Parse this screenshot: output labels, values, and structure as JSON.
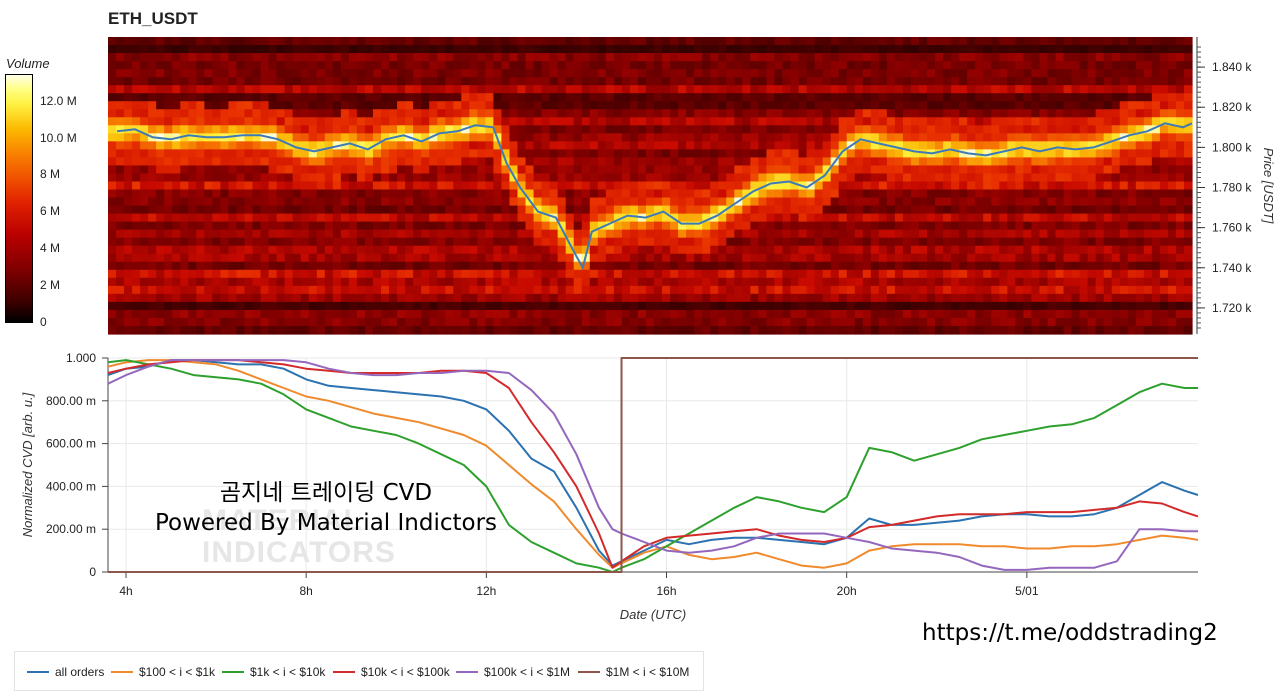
{
  "chart_title": "ETH_USDT",
  "heatmap": {
    "type": "heatmap",
    "colorbar": {
      "title": "Volume",
      "ticks": [
        "12.0 M",
        "10.0 M",
        "8 M",
        "6 M",
        "4 M",
        "2 M",
        "0"
      ],
      "tick_values": [
        12,
        10,
        8,
        6,
        4,
        2,
        0
      ],
      "max": 13.5
    },
    "y_axis": {
      "title": "Price [USDT]",
      "ticks": [
        "1.840 k",
        "1.820 k",
        "1.800 k",
        "1.780 k",
        "1.760 k",
        "1.740 k",
        "1.720 k"
      ],
      "tick_values": [
        1840,
        1820,
        1800,
        1780,
        1760,
        1740,
        1720
      ],
      "range": [
        1707,
        1855
      ]
    },
    "price_line_color": "#3d7ab8",
    "price_series": {
      "hours": [
        3.8,
        4.2,
        4.6,
        5.0,
        5.4,
        5.8,
        6.2,
        6.6,
        7.0,
        7.4,
        7.8,
        8.2,
        8.6,
        9.0,
        9.4,
        9.8,
        10.2,
        10.6,
        11.0,
        11.4,
        11.8,
        12.2,
        12.5,
        12.8,
        13.2,
        13.6,
        14.0,
        14.2,
        14.4,
        14.8,
        15.2,
        15.6,
        16.0,
        16.4,
        16.8,
        17.2,
        17.6,
        18.0,
        18.4,
        18.8,
        19.2,
        19.6,
        20.0,
        20.4,
        20.8,
        21.2,
        21.6,
        22.0,
        22.4,
        22.8,
        23.2,
        23.6,
        24.0,
        24.4,
        24.8,
        25.2,
        25.6,
        26.0,
        26.4,
        26.8,
        27.2,
        27.6,
        27.8
      ],
      "prices": [
        1808,
        1809,
        1805,
        1804,
        1806,
        1805,
        1805,
        1806,
        1806,
        1804,
        1800,
        1798,
        1800,
        1802,
        1799,
        1804,
        1806,
        1803,
        1807,
        1808,
        1811,
        1810,
        1792,
        1780,
        1768,
        1765,
        1748,
        1740,
        1758,
        1762,
        1766,
        1765,
        1768,
        1762,
        1762,
        1766,
        1772,
        1778,
        1782,
        1783,
        1780,
        1786,
        1798,
        1804,
        1802,
        1800,
        1798,
        1797,
        1799,
        1797,
        1796,
        1798,
        1800,
        1798,
        1800,
        1799,
        1800,
        1803,
        1806,
        1808,
        1812,
        1810,
        1812
      ]
    }
  },
  "chart_data": {
    "type": "line",
    "title": "",
    "xlabel": "Date (UTC)",
    "ylabel": "Normalized CVD [arb. u.]",
    "x_ticks": [
      "4h",
      "8h",
      "12h",
      "16h",
      "20h",
      "5/01"
    ],
    "x_tick_hours": [
      4,
      8,
      12,
      16,
      20,
      24
    ],
    "xlim_hours": [
      3.6,
      27.8
    ],
    "ylim": [
      0,
      1
    ],
    "y_ticks": [
      "1.000",
      "800.00 m",
      "600.00 m",
      "400.00 m",
      "200.00 m",
      "0"
    ],
    "y_tick_values": [
      1,
      0.8,
      0.6,
      0.4,
      0.2,
      0
    ],
    "x": [
      3.6,
      4.0,
      4.5,
      5.0,
      5.5,
      6.0,
      6.5,
      7.0,
      7.5,
      8.0,
      8.5,
      9.0,
      9.5,
      10.0,
      10.5,
      11.0,
      11.5,
      12.0,
      12.5,
      13.0,
      13.5,
      14.0,
      14.5,
      14.8,
      15.0,
      15.5,
      16.0,
      16.5,
      17.0,
      17.5,
      18.0,
      18.5,
      19.0,
      19.5,
      20.0,
      20.5,
      21.0,
      21.5,
      22.0,
      22.5,
      23.0,
      23.5,
      24.0,
      24.5,
      25.0,
      25.5,
      26.0,
      26.5,
      27.0,
      27.5,
      27.8
    ],
    "series": [
      {
        "name": "all orders",
        "color": "#2b72b0",
        "values": [
          0.92,
          0.95,
          0.96,
          0.99,
          0.99,
          0.98,
          0.97,
          0.97,
          0.95,
          0.9,
          0.87,
          0.86,
          0.85,
          0.84,
          0.83,
          0.82,
          0.8,
          0.76,
          0.66,
          0.53,
          0.47,
          0.3,
          0.1,
          0.03,
          0.05,
          0.1,
          0.15,
          0.13,
          0.15,
          0.16,
          0.16,
          0.15,
          0.14,
          0.13,
          0.16,
          0.25,
          0.22,
          0.22,
          0.23,
          0.24,
          0.26,
          0.27,
          0.27,
          0.26,
          0.26,
          0.27,
          0.3,
          0.36,
          0.42,
          0.38,
          0.36
        ]
      },
      {
        "name": "$100 < i < $1k",
        "color": "#f08a2c",
        "values": [
          0.96,
          0.98,
          0.99,
          0.99,
          0.98,
          0.97,
          0.94,
          0.9,
          0.86,
          0.82,
          0.8,
          0.77,
          0.74,
          0.72,
          0.7,
          0.67,
          0.64,
          0.59,
          0.5,
          0.41,
          0.33,
          0.2,
          0.08,
          0.02,
          0.04,
          0.09,
          0.12,
          0.08,
          0.06,
          0.07,
          0.09,
          0.06,
          0.03,
          0.02,
          0.04,
          0.1,
          0.12,
          0.13,
          0.13,
          0.13,
          0.12,
          0.12,
          0.11,
          0.11,
          0.12,
          0.12,
          0.13,
          0.15,
          0.17,
          0.16,
          0.15
        ]
      },
      {
        "name": "$1k < i < $10k",
        "color": "#2da02d",
        "values": [
          0.98,
          0.99,
          0.97,
          0.95,
          0.92,
          0.91,
          0.9,
          0.88,
          0.83,
          0.76,
          0.72,
          0.68,
          0.66,
          0.64,
          0.6,
          0.55,
          0.5,
          0.4,
          0.22,
          0.14,
          0.09,
          0.04,
          0.02,
          0.0,
          0.02,
          0.06,
          0.12,
          0.18,
          0.24,
          0.3,
          0.35,
          0.33,
          0.3,
          0.28,
          0.35,
          0.58,
          0.56,
          0.52,
          0.55,
          0.58,
          0.62,
          0.64,
          0.66,
          0.68,
          0.69,
          0.72,
          0.78,
          0.84,
          0.88,
          0.86,
          0.86
        ]
      },
      {
        "name": "$10k < i < $100k",
        "color": "#d42a2a",
        "values": [
          0.93,
          0.95,
          0.97,
          0.98,
          0.99,
          0.99,
          0.99,
          0.98,
          0.97,
          0.95,
          0.94,
          0.93,
          0.93,
          0.93,
          0.93,
          0.94,
          0.94,
          0.93,
          0.86,
          0.7,
          0.56,
          0.4,
          0.18,
          0.02,
          0.05,
          0.12,
          0.16,
          0.17,
          0.18,
          0.19,
          0.2,
          0.17,
          0.15,
          0.14,
          0.16,
          0.21,
          0.22,
          0.24,
          0.26,
          0.27,
          0.27,
          0.27,
          0.28,
          0.28,
          0.28,
          0.29,
          0.3,
          0.33,
          0.32,
          0.28,
          0.26
        ]
      },
      {
        "name": "$100k < i < $1M",
        "color": "#9467bd",
        "values": [
          0.88,
          0.92,
          0.96,
          0.99,
          0.99,
          0.99,
          0.99,
          0.99,
          0.99,
          0.98,
          0.95,
          0.93,
          0.92,
          0.92,
          0.93,
          0.93,
          0.94,
          0.94,
          0.93,
          0.85,
          0.74,
          0.55,
          0.3,
          0.2,
          0.18,
          0.14,
          0.1,
          0.09,
          0.1,
          0.12,
          0.16,
          0.18,
          0.18,
          0.18,
          0.16,
          0.14,
          0.11,
          0.1,
          0.09,
          0.07,
          0.03,
          0.01,
          0.01,
          0.02,
          0.02,
          0.02,
          0.05,
          0.2,
          0.2,
          0.19,
          0.19
        ]
      },
      {
        "name": "$1M < i < $10M",
        "color": "#8c564b",
        "values": [
          0,
          0,
          0,
          0,
          0,
          0,
          0,
          0,
          0,
          0,
          0,
          0,
          0,
          0,
          0,
          0,
          0,
          0,
          0,
          0,
          0,
          0,
          0,
          0,
          1,
          1,
          1,
          1,
          1,
          1,
          1,
          1,
          1,
          1,
          1,
          1,
          1,
          1,
          1,
          1,
          1,
          1,
          1,
          1,
          1,
          1,
          1,
          1,
          1,
          1,
          1
        ]
      }
    ]
  },
  "watermark": {
    "line1": "곰지네 트레이딩 CVD",
    "line2": "Powered By Material Indictors",
    "logo_line1": "MATERIAL",
    "logo_line2": "INDICATORS"
  },
  "link_text": "https://t.me/oddstrading2"
}
